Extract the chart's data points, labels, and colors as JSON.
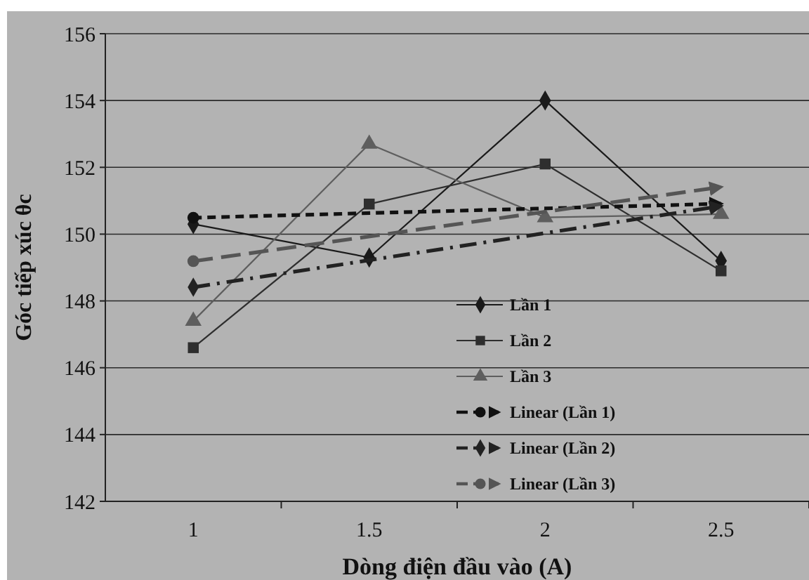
{
  "chart_data": {
    "type": "line",
    "xlabel": "Dòng điện đầu vào (A)",
    "ylabel": "Góc tiếp xúc θc",
    "categories": [
      "1",
      "1.5",
      "2",
      "2.5"
    ],
    "ylim": [
      142,
      156
    ],
    "yticks": [
      142,
      144,
      146,
      148,
      150,
      152,
      154,
      156
    ],
    "grid": "y",
    "legend": "bottom right",
    "series": [
      {
        "name": "Lần 1",
        "color": "#1a1a1a",
        "values": [
          150.3,
          149.3,
          154.0,
          149.2
        ],
        "marker": "diamond",
        "line_style": "solid"
      },
      {
        "name": "Lần 2",
        "color": "#2e2e2e",
        "values": [
          146.6,
          150.9,
          152.1,
          148.9
        ],
        "marker": "square",
        "line_style": "solid"
      },
      {
        "name": "Lần 3",
        "color": "#5e5e5e",
        "values": [
          147.4,
          152.7,
          150.5,
          150.6
        ],
        "marker": "triangle",
        "line_style": "solid"
      },
      {
        "name": "Linear (Lần 1)",
        "color": "#111111",
        "x": [
          "1",
          "2.5"
        ],
        "values": [
          150.49,
          150.91
        ],
        "marker": "circle",
        "line_style": "dashed"
      },
      {
        "name": "Linear (Lần 2)",
        "color": "#222222",
        "x": [
          "1",
          "2.5"
        ],
        "values": [
          148.41,
          150.84
        ],
        "marker": "diamond",
        "line_style": "dashdot"
      },
      {
        "name": "Linear (Lần 3)",
        "color": "#555555",
        "x": [
          "1",
          "2.5"
        ],
        "values": [
          149.19,
          151.41
        ],
        "marker": "circle",
        "line_style": "longdash"
      }
    ]
  }
}
